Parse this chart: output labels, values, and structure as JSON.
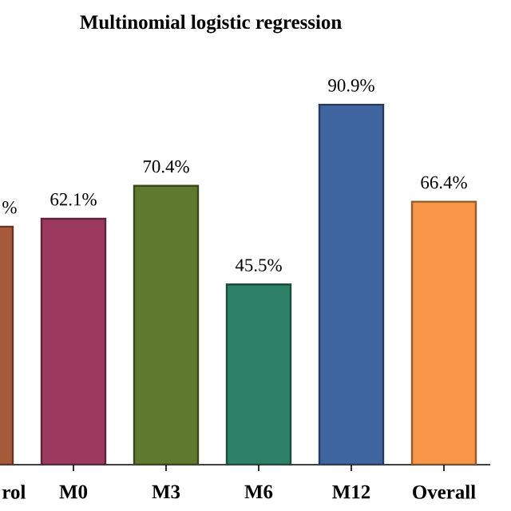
{
  "chart_data": {
    "type": "bar",
    "title": "Multinomial logistic regression",
    "categories": [
      "rol",
      "M0",
      "M3",
      "M6",
      "M12",
      "Overall"
    ],
    "values": [
      60.1,
      62.1,
      70.4,
      45.5,
      90.9,
      66.4
    ],
    "value_labels": [
      "%",
      "62.1%",
      "70.4%",
      "45.5%",
      "90.9%",
      "66.4%"
    ],
    "colors": [
      "#a65a3a",
      "#9b3a5e",
      "#5f7a2e",
      "#2e8066",
      "#3f66a0",
      "#f79646"
    ]
  }
}
